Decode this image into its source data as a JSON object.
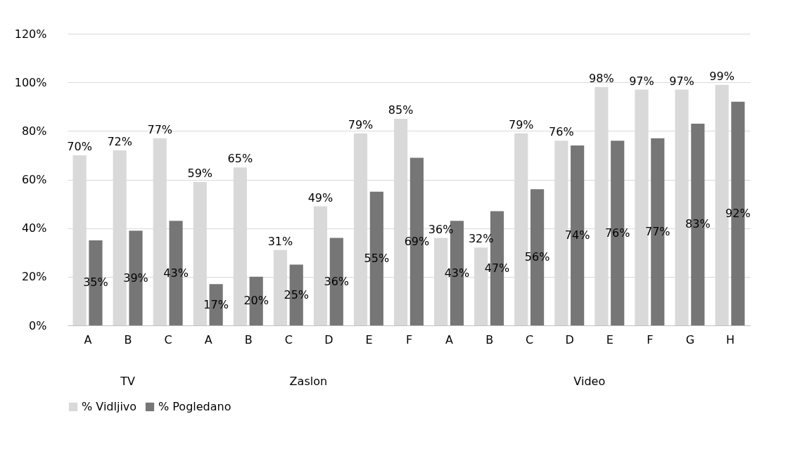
{
  "chart_data": {
    "type": "bar",
    "categories": [
      "A",
      "B",
      "C",
      "A",
      "B",
      "C",
      "D",
      "E",
      "F",
      "A",
      "B",
      "C",
      "D",
      "E",
      "F",
      "G",
      "H"
    ],
    "series": [
      {
        "name": "% Vidljivo",
        "color": "#d9d9d9",
        "values": [
          70,
          72,
          77,
          59,
          65,
          31,
          49,
          79,
          85,
          36,
          32,
          79,
          76,
          98,
          97,
          97,
          99
        ],
        "value_labels": [
          "70%",
          "72%",
          "77%",
          "59%",
          "65%",
          "31%",
          "49%",
          "79%",
          "85%",
          "36%",
          "32%",
          "79%",
          "76%",
          "98%",
          "97%",
          "97%",
          "99%"
        ]
      },
      {
        "name": "% Pogledano",
        "color": "#767676",
        "values": [
          35,
          39,
          43,
          17,
          20,
          25,
          36,
          55,
          69,
          43,
          47,
          56,
          74,
          76,
          77,
          83,
          92
        ],
        "value_labels": [
          "35%",
          "39%",
          "43%",
          "17%",
          "20%",
          "25%",
          "36%",
          "55%",
          "69%",
          "43%",
          "47%",
          "56%",
          "74%",
          "76%",
          "77%",
          "83%",
          "92%"
        ]
      }
    ],
    "ylim": [
      0,
      120
    ],
    "yticks": [
      {
        "value": 0,
        "label": "0%"
      },
      {
        "value": 20,
        "label": "20%"
      },
      {
        "value": 40,
        "label": "40%"
      },
      {
        "value": 60,
        "label": "60%"
      },
      {
        "value": 80,
        "label": "80%"
      },
      {
        "value": 100,
        "label": "100%"
      },
      {
        "value": 120,
        "label": "120%"
      }
    ],
    "grid": "y",
    "legend": "bottom",
    "annotations": [
      "TV",
      "Zaslon",
      "Video"
    ]
  }
}
